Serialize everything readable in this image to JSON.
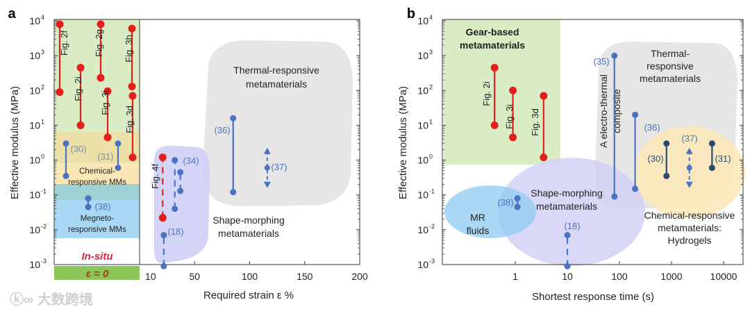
{
  "watermark": "大数跨境",
  "colors": {
    "red": "#e3201b",
    "blue": "#4a72c0",
    "navy": "#2c4a6e",
    "green_band": "#d9ecc4",
    "yellow_band": "#fbe6b5",
    "teal_band": "#9fd0d4",
    "blue_band": "#a9d8f5",
    "gray_region": "#e6e6e6",
    "purple_region": "#cfd0f5",
    "zero_bar": "#8cc65a"
  },
  "chart_data": [
    {
      "panel": "a",
      "type": "scatter",
      "ylabel": "Effective modulus (MPa)",
      "xlabel": "Required strain ε %",
      "yscale": "log",
      "ylim": [
        0.001,
        10000
      ],
      "ytick_exponents": [
        "4",
        "3",
        "2",
        "1",
        "0",
        "-1",
        "-2",
        "-3"
      ],
      "xlim": [
        0,
        200
      ],
      "xticks": [
        "10",
        "50",
        "100",
        "150",
        "200"
      ],
      "zero_strain_label": "ε = 0",
      "insitu_label": "In-situ",
      "regions": {
        "thermal": [
          "Thermal-responsive",
          "metamaterials"
        ],
        "shape": [
          "Shape-morphing",
          "metamaterials"
        ],
        "chemical": [
          "Chemical-",
          "responsive MMs"
        ],
        "magneto": [
          "Megneto-",
          "responsive MMs"
        ]
      },
      "zero_strain_series": [
        {
          "label": "Fig. 2f",
          "y": [
            90,
            8000
          ],
          "color": "red"
        },
        {
          "label": "Fig. 2i",
          "y": [
            10,
            450
          ],
          "color": "red"
        },
        {
          "label": "Fig. 2g",
          "y": [
            230,
            8000
          ],
          "color": "red"
        },
        {
          "label": "Fig. 3i",
          "y": [
            4.5,
            95
          ],
          "color": "red"
        },
        {
          "label": "Fig. 3h",
          "y": [
            130,
            6000
          ],
          "color": "red"
        },
        {
          "label": "Fig. 3d",
          "y": [
            1.2,
            70
          ],
          "color": "red"
        },
        {
          "label": "(30)",
          "y": [
            0.35,
            3
          ],
          "color": "blue"
        },
        {
          "label": "(31)",
          "y": [
            0.6,
            3
          ],
          "color": "blue"
        },
        {
          "label": "(38)",
          "y": [
            0.045,
            0.08
          ],
          "color": "blue"
        }
      ],
      "series": [
        {
          "label": "Fig. 4f",
          "x": 21,
          "y": [
            0.022,
            1.2
          ],
          "color": "red",
          "dashed": true
        },
        {
          "label": "(34)",
          "x": 32,
          "y": [
            0.04,
            1.0
          ],
          "color": "blue",
          "dashed": true
        },
        {
          "label": "",
          "x": 37,
          "y": [
            0.13,
            0.45
          ],
          "color": "blue",
          "dashed": true
        },
        {
          "label": "(36)",
          "x": 85,
          "y": [
            0.12,
            16
          ],
          "color": "blue"
        },
        {
          "label": "(37)",
          "x": 116,
          "y": [
            0.6,
            0.6
          ],
          "color": "blue",
          "arrows": true
        },
        {
          "label": "(18)",
          "x": 22,
          "y": [
            0.0009,
            0.007
          ],
          "color": "blue",
          "dashed": true
        }
      ]
    },
    {
      "panel": "b",
      "type": "scatter",
      "ylabel": "Effective modulus (MPa)",
      "xlabel": "Shortest response time (s)",
      "yscale": "log",
      "xscale": "log",
      "ylim": [
        0.001,
        10000
      ],
      "ytick_exponents": [
        "4",
        "3",
        "2",
        "1",
        "0",
        "-1",
        "-2",
        "-3"
      ],
      "xticks": [
        "1",
        "10",
        "100",
        "1000",
        "10000"
      ],
      "regions": {
        "gear": [
          "Gear-based",
          "metamaterials"
        ],
        "thermal": [
          "Thermal-",
          "responsive",
          "metamaterials"
        ],
        "chemical": [
          "Chemical-responsive",
          "metamaterials:",
          "Hydrogels"
        ],
        "shape": [
          "Shape-morphing",
          "metamaterials"
        ],
        "mr": [
          "MR",
          "fluids"
        ],
        "composite": [
          "A electro-thermal",
          "composite"
        ]
      },
      "series": [
        {
          "label": "Fig. 2i",
          "x": 0.4,
          "y": [
            10,
            450
          ],
          "color": "red"
        },
        {
          "label": "Fig. 3i",
          "x": 0.9,
          "y": [
            4.5,
            100
          ],
          "color": "red"
        },
        {
          "label": "Fig. 3d",
          "x": 3.5,
          "y": [
            1.2,
            70
          ],
          "color": "red"
        },
        {
          "label": "(35)",
          "x": 80,
          "y": [
            0.09,
            1000
          ],
          "color": "blue"
        },
        {
          "label": "(36)",
          "x": 200,
          "y": [
            0.15,
            20
          ],
          "color": "blue"
        },
        {
          "label": "(30)",
          "x": 800,
          "y": [
            0.35,
            3
          ],
          "color": "navy"
        },
        {
          "label": "(37)",
          "x": 2200,
          "y": [
            0.6,
            0.6
          ],
          "color": "blue",
          "arrows": true
        },
        {
          "label": "(31)",
          "x": 6000,
          "y": [
            0.6,
            3
          ],
          "color": "navy"
        },
        {
          "label": "(38)",
          "x": 1.1,
          "y": [
            0.045,
            0.08
          ],
          "color": "blue"
        },
        {
          "label": "(18)",
          "x": 10,
          "y": [
            0.0009,
            0.007
          ],
          "color": "blue",
          "dashed": true
        }
      ]
    }
  ],
  "panel_labels": [
    "a",
    "b"
  ]
}
